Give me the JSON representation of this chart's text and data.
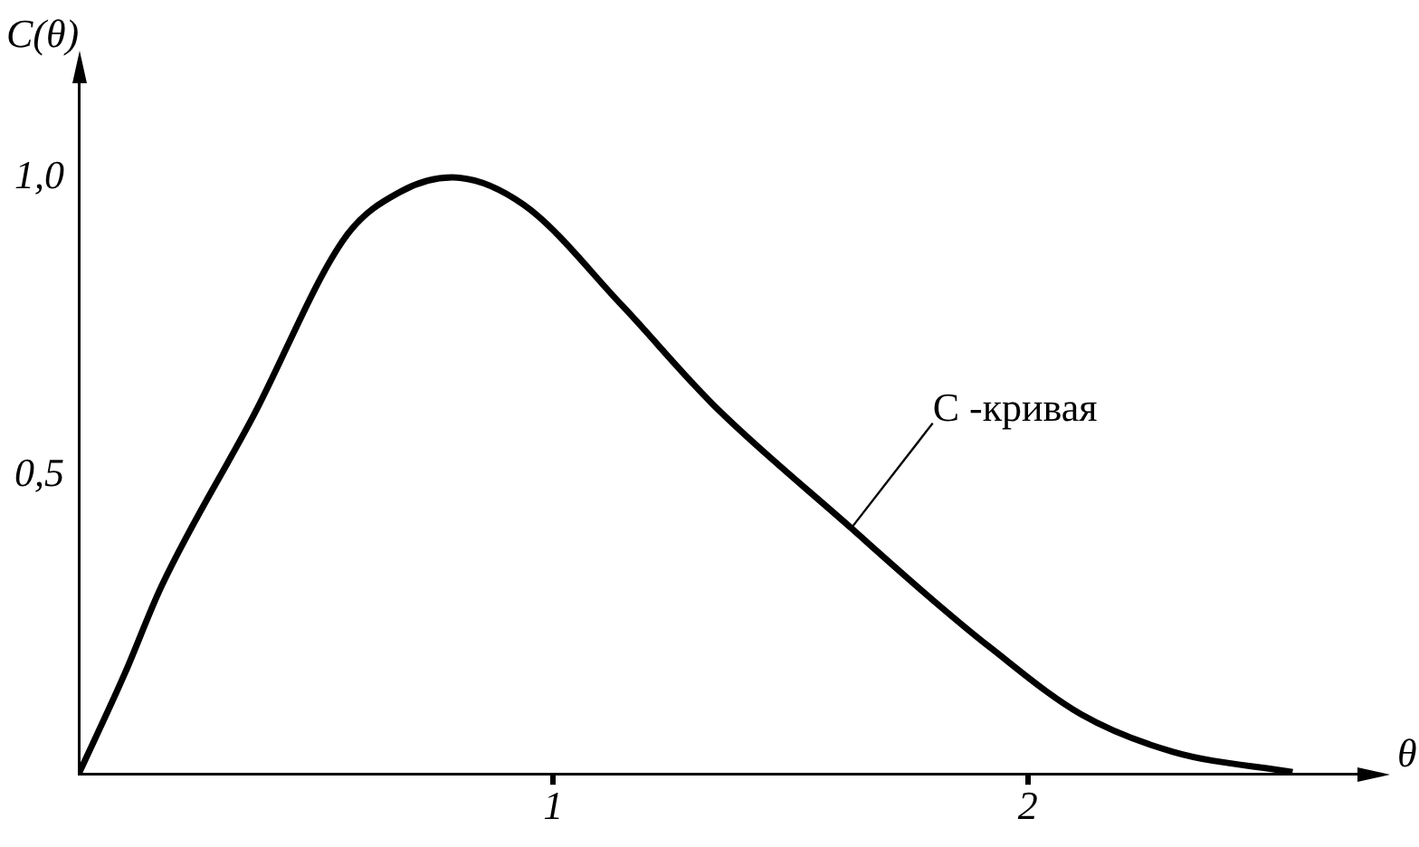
{
  "chart_data": {
    "type": "line",
    "xlabel": "θ",
    "ylabel": "C(θ)",
    "x": [
      0,
      0.097,
      0.174,
      0.368,
      0.562,
      0.678,
      0.787,
      0.938,
      1.143,
      1.337,
      1.628,
      1.802,
      1.919,
      2.112,
      2.306,
      2.558
    ],
    "series": [
      {
        "color": "#000000",
        "values": [
          0,
          0.168,
          0.314,
          0.6,
          0.9,
          0.976,
          1.0,
          0.954,
          0.787,
          0.619,
          0.412,
          0.29,
          0.213,
          0.1,
          0.037,
          0.003
        ]
      }
    ],
    "xlim": [
      0,
      2.71
    ],
    "ylim": [
      0,
      1.17
    ],
    "xticks": [
      1,
      2
    ],
    "yticks": [
      {
        "value": 0.5,
        "label": "0,5"
      },
      {
        "value": 1,
        "label": "1,0"
      }
    ],
    "annotations": [
      {
        "text": "C -кривая",
        "x": 1.628,
        "y": 0.412
      }
    ]
  }
}
